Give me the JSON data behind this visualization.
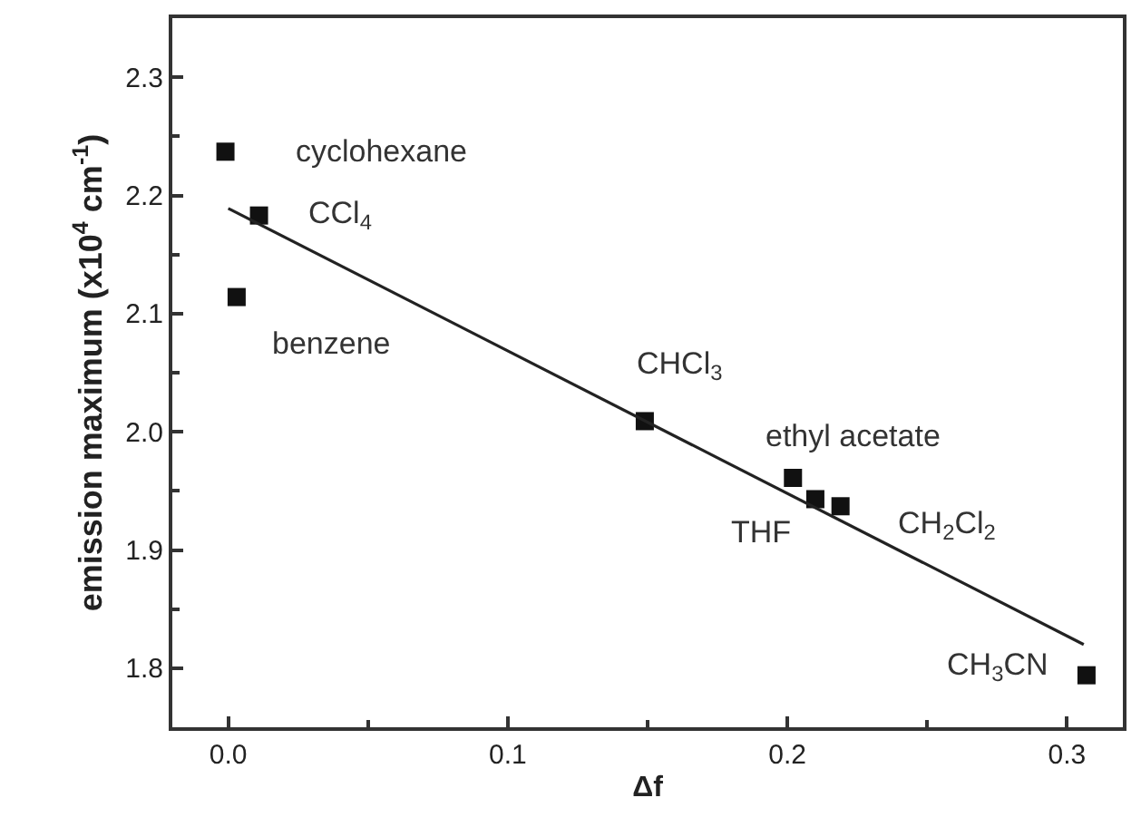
{
  "chart_data": {
    "type": "scatter",
    "xlabel": "Δf",
    "ylabel": "emission maximum (x10$^{4}$ cm$^{-1}$)",
    "xlim": [
      -0.02,
      0.32
    ],
    "xticks": [
      {
        "value": 0.0,
        "label": "0.0"
      },
      0.1,
      0.2,
      0.3
    ],
    "ylim": [
      1.75,
      2.35
    ],
    "yticks": [
      1.8,
      1.9,
      {
        "value": 2.0,
        "label": "2.0"
      },
      2.1,
      2.2,
      2.3
    ],
    "series": [
      {
        "marker": "square",
        "color": "#111111",
        "x": [
          -0.001,
          0.011,
          0.003,
          0.149,
          0.202,
          0.21,
          0.219,
          0.307
        ],
        "values": [
          2.237,
          2.183,
          2.114,
          2.009,
          1.961,
          1.943,
          1.937,
          1.794
        ]
      },
      {
        "type": "line",
        "marker": "none",
        "color": "#222222",
        "line_style": "solid",
        "x": [
          0.0,
          0.306
        ],
        "values": [
          2.189,
          1.82
        ]
      }
    ],
    "annotations": [
      {
        "text": "cyclohexane",
        "x": -0.001,
        "y": 2.237
      },
      {
        "text": "CCl$_{4}$",
        "x": 0.011,
        "y": 2.183
      },
      {
        "text": "benzene",
        "x": 0.003,
        "y": 2.114
      },
      {
        "text": "CHCl$_{3}$",
        "x": 0.149,
        "y": 2.009
      },
      {
        "text": "ethyl acetate",
        "x": 0.202,
        "y": 1.961
      },
      {
        "text": "THF",
        "x": 0.21,
        "y": 1.943
      },
      {
        "text": "CH$_{2}$Cl$_{2}$",
        "x": 0.219,
        "y": 1.937
      },
      {
        "text": "CH$_{3}$CN",
        "x": 0.307,
        "y": 1.794
      }
    ]
  }
}
